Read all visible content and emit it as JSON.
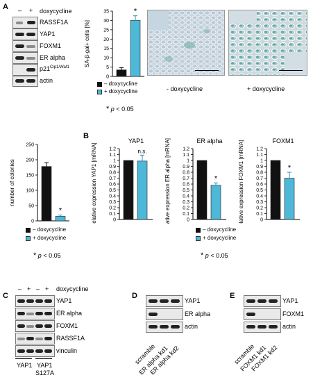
{
  "panels": {
    "A": "A",
    "B": "B",
    "C": "C",
    "D": "D",
    "E": "E"
  },
  "panelA": {
    "lane_signs": [
      "–",
      "+"
    ],
    "treatment": "doxycycline",
    "blot_labels": [
      "RASSF1A",
      "YAP1",
      "FOXM1",
      "ER alpha",
      "p21",
      "actin"
    ],
    "p21_superscript": "Cip1/Waf1",
    "micro_labels": [
      "- doxycycline",
      "+ doxycycline"
    ]
  },
  "panelC": {
    "lane_signs": [
      "–",
      "+",
      "–",
      "+"
    ],
    "treatment": "doxycycline",
    "blot_labels": [
      "YAP1",
      "ER alpha",
      "FOXM1",
      "RASSF1A",
      "vinculin"
    ],
    "group_labels": [
      "YAP1",
      "YAP1",
      "S127A"
    ]
  },
  "panelD": {
    "blot_labels": [
      "YAP1",
      "ER alpha",
      "actin"
    ],
    "lane_labels": [
      "scramble",
      "ER alpha kd1",
      "ER alpha kd2"
    ]
  },
  "panelE": {
    "blot_labels": [
      "YAP1",
      "FOXM1",
      "actin"
    ],
    "lane_labels": [
      "scramble",
      "FOXM1 kd1",
      "FOXM1 kd2"
    ]
  },
  "significance": {
    "star": "*",
    "p_label": "p",
    "p_value": "< 0.05",
    "ns": "n.s."
  },
  "colors": {
    "minus_dox": "#111111",
    "plus_dox": "#4db8d8"
  },
  "chart_data": [
    {
      "id": "sa-beta-gal",
      "type": "bar",
      "categories": [
        "– doxycycline",
        "+ doxycycline"
      ],
      "values": [
        3.5,
        30
      ],
      "errors": [
        1.2,
        2.5
      ],
      "ylabel": "SA-β-gal+ cells [%]",
      "ylim": [
        0,
        35
      ],
      "yticks": [
        0,
        5,
        10,
        15,
        20,
        25,
        30,
        35
      ],
      "legend": [
        "– doxycycline",
        "+ doxycycline"
      ],
      "annotations": [
        "",
        "*"
      ],
      "grid": false
    },
    {
      "id": "colonies",
      "type": "bar",
      "categories": [
        "– doxycycline",
        "+ doxycycline"
      ],
      "values": [
        178,
        15
      ],
      "errors": [
        12,
        4
      ],
      "ylabel": "number of colonies",
      "ylim": [
        0,
        250
      ],
      "yticks": [
        0,
        50,
        100,
        150,
        200,
        250
      ],
      "legend": [
        "– doxycycline",
        "+ doxycycline"
      ],
      "annotations": [
        "",
        "*"
      ],
      "grid": false
    },
    {
      "id": "yap1-mrna",
      "type": "bar",
      "title": "YAP1",
      "categories": [
        "– doxycycline",
        "+ doxycycline"
      ],
      "values": [
        1.0,
        0.99
      ],
      "errors": [
        0,
        0.1
      ],
      "ylabel": "relative expression YAP1 [mRNA]",
      "ylim": [
        0,
        1.2
      ],
      "yticks": [
        0,
        0.1,
        0.2,
        0.3,
        0.4,
        0.5,
        0.6,
        0.7,
        0.8,
        0.9,
        1.0,
        1.1,
        1.2
      ],
      "annotations": [
        "",
        "n.s."
      ],
      "grid": false
    },
    {
      "id": "eralpha-mrna",
      "type": "bar",
      "title": "ER alpha",
      "categories": [
        "– doxycycline",
        "+ doxycycline"
      ],
      "values": [
        1.0,
        0.58
      ],
      "errors": [
        0,
        0.04
      ],
      "ylabel": "relative expression ER alpha [mRNA]",
      "ylim": [
        0,
        1.2
      ],
      "yticks": [
        0,
        0.1,
        0.2,
        0.3,
        0.4,
        0.5,
        0.6,
        0.7,
        0.8,
        0.9,
        1.0,
        1.1,
        1.2
      ],
      "legend": [
        "– doxycycline",
        "+ doxycycline"
      ],
      "annotations": [
        "",
        "*"
      ],
      "grid": false
    },
    {
      "id": "foxm1-mrna",
      "type": "bar",
      "title": "FOXM1",
      "categories": [
        "– doxycycline",
        "+ doxycycline"
      ],
      "values": [
        1.0,
        0.7
      ],
      "errors": [
        0,
        0.1
      ],
      "ylabel": "relative expression FOXM1 [mRNA]",
      "ylim": [
        0,
        1.2
      ],
      "yticks": [
        0,
        0.1,
        0.2,
        0.3,
        0.4,
        0.5,
        0.6,
        0.7,
        0.8,
        0.9,
        1.0,
        1.1,
        1.2
      ],
      "annotations": [
        "",
        "*"
      ],
      "grid": false
    }
  ]
}
